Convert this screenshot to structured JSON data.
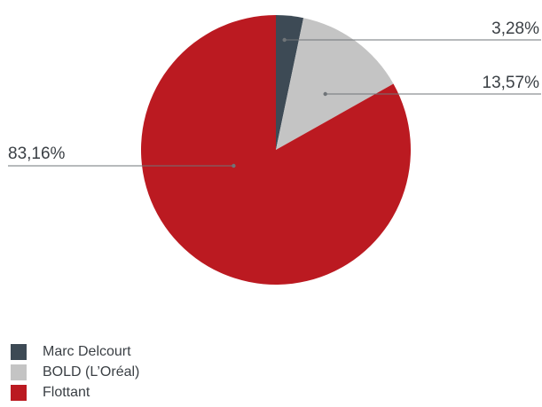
{
  "chart_data": {
    "type": "pie",
    "title": "",
    "series": [
      {
        "name": "Marc Delcourt",
        "value": 3.28,
        "label": "3,28%",
        "color": "#3d4a55"
      },
      {
        "name": "BOLD (L’Oréal)",
        "value": 13.57,
        "label": "13,57%",
        "color": "#c4c4c4"
      },
      {
        "name": "Flottant",
        "value": 83.16,
        "label": "83,16%",
        "color": "#bb1a21"
      }
    ],
    "legend_position": "bottom-left",
    "start_angle": "top, clockwise"
  }
}
